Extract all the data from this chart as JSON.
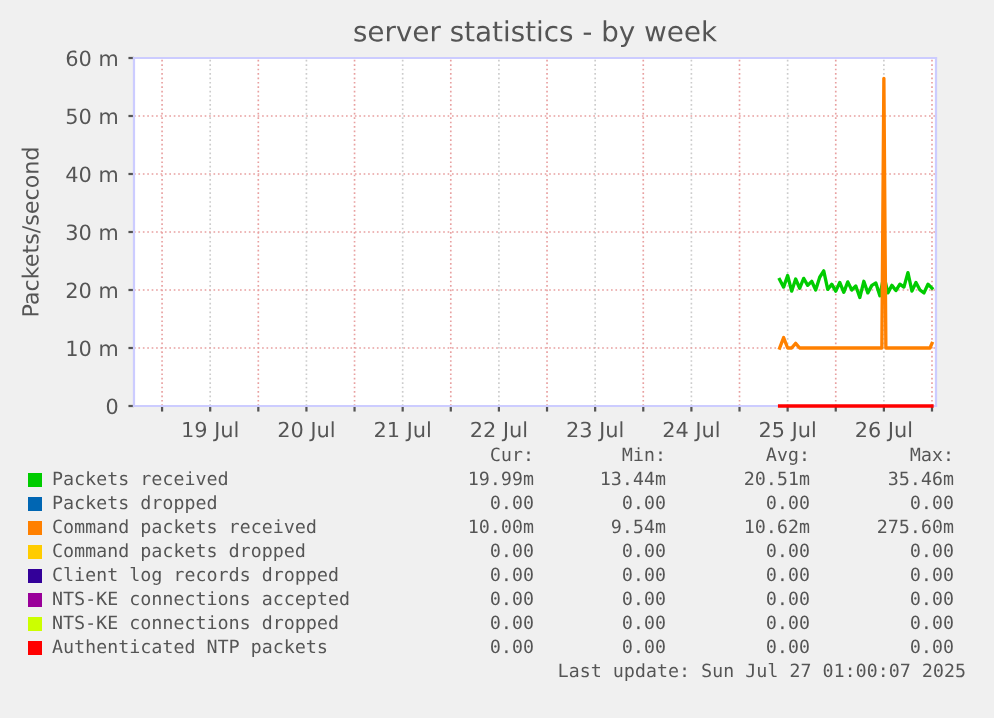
{
  "chart_data": {
    "type": "line",
    "title": "server statistics - by week",
    "ylabel": "Packets/second",
    "xlim": [
      "2025-07-18T17:00",
      "2025-07-27T01:00"
    ],
    "xticks": [
      {
        "value": "2025-07-19T00:00",
        "label": null
      },
      {
        "value": "2025-07-19T12:00",
        "label": "19 Jul"
      },
      {
        "value": "2025-07-20T00:00",
        "label": null
      },
      {
        "value": "2025-07-20T12:00",
        "label": "20 Jul"
      },
      {
        "value": "2025-07-21T00:00",
        "label": null
      },
      {
        "value": "2025-07-21T12:00",
        "label": "21 Jul"
      },
      {
        "value": "2025-07-22T00:00",
        "label": null
      },
      {
        "value": "2025-07-22T12:00",
        "label": "22 Jul"
      },
      {
        "value": "2025-07-23T00:00",
        "label": null
      },
      {
        "value": "2025-07-23T12:00",
        "label": "23 Jul"
      },
      {
        "value": "2025-07-24T00:00",
        "label": null
      },
      {
        "value": "2025-07-24T12:00",
        "label": "24 Jul"
      },
      {
        "value": "2025-07-25T00:00",
        "label": null
      },
      {
        "value": "2025-07-25T12:00",
        "label": "25 Jul"
      },
      {
        "value": "2025-07-26T00:00",
        "label": null
      },
      {
        "value": "2025-07-26T12:00",
        "label": "26 Jul"
      },
      {
        "value": "2025-07-27T00:00",
        "label": null
      }
    ],
    "ylim": [
      0,
      60
    ],
    "yticks": [
      0,
      {
        "value": 10,
        "label": "10 m"
      },
      {
        "value": 20,
        "label": "20 m"
      },
      {
        "value": 30,
        "label": "30 m"
      },
      {
        "value": 40,
        "label": "40 m"
      },
      {
        "value": 50,
        "label": "50 m"
      },
      {
        "value": 60,
        "label": "60 m"
      }
    ],
    "grid": true,
    "legend": "bottom",
    "marker": "none",
    "line_style": "solid",
    "series": [
      {
        "name": "Packets received",
        "color": "#00cc00",
        "x": [
          "2025-07-25T10:00",
          "2025-07-25T11:00",
          "2025-07-25T12:00",
          "2025-07-25T13:00",
          "2025-07-25T14:00",
          "2025-07-25T15:00",
          "2025-07-25T16:00",
          "2025-07-25T17:00",
          "2025-07-25T18:00",
          "2025-07-25T19:00",
          "2025-07-25T20:00",
          "2025-07-25T21:00",
          "2025-07-25T22:00",
          "2025-07-25T23:00",
          "2025-07-26T00:00",
          "2025-07-26T01:00",
          "2025-07-26T02:00",
          "2025-07-26T03:00",
          "2025-07-26T04:00",
          "2025-07-26T05:00",
          "2025-07-26T06:00",
          "2025-07-26T07:00",
          "2025-07-26T08:00",
          "2025-07-26T09:00",
          "2025-07-26T10:00",
          "2025-07-26T11:00",
          "2025-07-26T12:00",
          "2025-07-26T13:00",
          "2025-07-26T14:00",
          "2025-07-26T15:00",
          "2025-07-26T16:00",
          "2025-07-26T17:00",
          "2025-07-26T18:00",
          "2025-07-26T19:00",
          "2025-07-26T20:00",
          "2025-07-26T21:00",
          "2025-07-26T22:00",
          "2025-07-26T23:00",
          "2025-07-27T00:00"
        ],
        "values": [
          21.8,
          20.5,
          22.5,
          19.8,
          21.9,
          20.3,
          22.0,
          20.8,
          21.5,
          20.0,
          22.2,
          23.3,
          20.1,
          21.0,
          19.8,
          21.3,
          19.6,
          21.4,
          20.0,
          20.7,
          18.7,
          21.5,
          19.5,
          20.8,
          21.2,
          19.0,
          22.5,
          19.5,
          20.8,
          19.9,
          21.0,
          20.5,
          23.0,
          19.8,
          21.3,
          20.0,
          19.5,
          21.0,
          20.3
        ]
      },
      {
        "name": "Packets dropped",
        "color": "#0066b3"
      },
      {
        "name": "Command packets received",
        "color": "#ff8000",
        "x": [
          "2025-07-25T10:00",
          "2025-07-25T11:00",
          "2025-07-25T12:00",
          "2025-07-25T13:00",
          "2025-07-25T14:00",
          "2025-07-25T15:00",
          "2025-07-26T11:30",
          "2025-07-26T12:00",
          "2025-07-26T12:30",
          "2025-07-26T23:30",
          "2025-07-27T00:00"
        ],
        "values": [
          10.0,
          11.8,
          10.0,
          10.0,
          10.8,
          10.0,
          10.0,
          56.5,
          10.0,
          10.0,
          10.8
        ]
      },
      {
        "name": "Command packets dropped",
        "color": "#ffcc00"
      },
      {
        "name": "Client log records dropped",
        "color": "#330099"
      },
      {
        "name": "NTS-KE connections accepted",
        "color": "#990099"
      },
      {
        "name": "NTS-KE connections dropped",
        "color": "#ccff00"
      },
      {
        "name": "Authenticated NTP packets",
        "color": "#ff0000",
        "x": [
          "2025-07-25T10:00",
          "2025-07-27T00:00"
        ],
        "values": [
          0,
          0
        ]
      }
    ],
    "annotations": [
      "Cur:",
      "Min:",
      "Avg:",
      "Max:",
      "19.99m",
      "13.44m",
      "20.51m",
      "35.46m",
      "0.00",
      "0.00",
      "0.00",
      "0.00",
      "10.00m",
      "9.54m",
      "10.62m",
      "275.60m",
      "0.00",
      "0.00",
      "0.00",
      "0.00",
      "0.00",
      "0.00",
      "0.00",
      "0.00",
      "0.00",
      "0.00",
      "0.00",
      "0.00",
      "0.00",
      "0.00",
      "0.00",
      "0.00",
      "0.00",
      "0.00",
      "0.00",
      "0.00",
      "Last update: Sun Jul 27 01:00:07 2025"
    ]
  }
}
